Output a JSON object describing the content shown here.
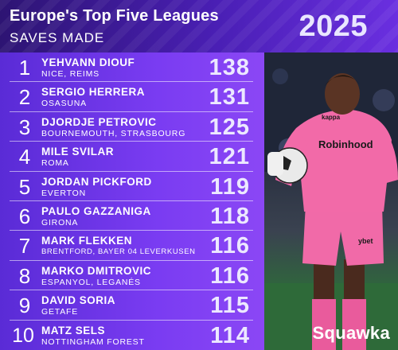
{
  "header": {
    "title": "Europe's Top Five Leagues",
    "subtitle": "SAVES MADE",
    "year": "2025"
  },
  "rankings": [
    {
      "rank": "1",
      "name": "YEHVANN DIOUF",
      "club": "NICE, REIMS",
      "saves": "138"
    },
    {
      "rank": "2",
      "name": "SERGIO HERRERA",
      "club": "OSASUNA",
      "saves": "131"
    },
    {
      "rank": "3",
      "name": "DJORDJE PETROVIC",
      "club": "BOURNEMOUTH, STRASBOURG",
      "saves": "125"
    },
    {
      "rank": "4",
      "name": "MILE SVILAR",
      "club": "ROMA",
      "saves": "121"
    },
    {
      "rank": "5",
      "name": "JORDAN PICKFORD",
      "club": "EVERTON",
      "saves": "119"
    },
    {
      "rank": "6",
      "name": "PAULO GAZZANIGA",
      "club": "GIRONA",
      "saves": "118"
    },
    {
      "rank": "7",
      "name": "MARK FLEKKEN",
      "club": "BRENTFORD, BAYER 04 LEVERKUSEN",
      "saves": "116"
    },
    {
      "rank": "8",
      "name": "MARKO DMITROVIC",
      "club": "ESPANYOL, LEGANÉS",
      "saves": "116"
    },
    {
      "rank": "9",
      "name": "DAVID SORIA",
      "club": "GETAFE",
      "saves": "115"
    },
    {
      "rank": "10",
      "name": "MATZ SELS",
      "club": "NOTTINGHAM FOREST",
      "saves": "114"
    }
  ],
  "photo": {
    "sponsor": "Robinhood",
    "kit_brand": "kappa",
    "sleeve_sponsor": "ybet"
  },
  "brand": "Squawka",
  "colors": {
    "header_bg": "#3a1a95",
    "list_bg": "#6b35e8",
    "kit_pink": "#f26aa8",
    "text": "#ffffff"
  }
}
